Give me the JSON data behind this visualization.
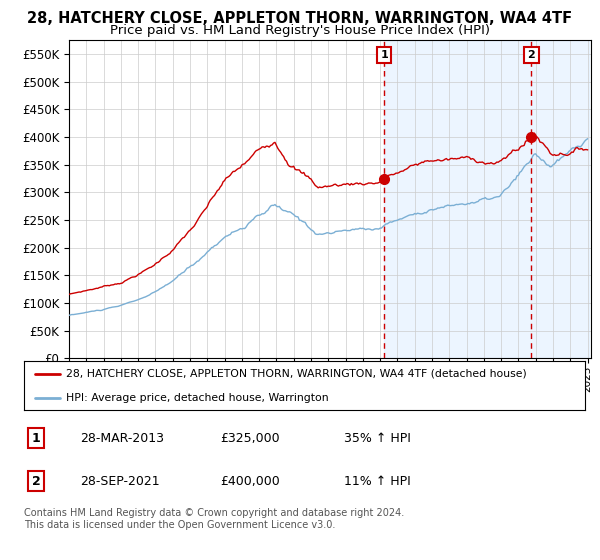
{
  "title": "28, HATCHERY CLOSE, APPLETON THORN, WARRINGTON, WA4 4TF",
  "subtitle": "Price paid vs. HM Land Registry's House Price Index (HPI)",
  "hpi_label": "HPI: Average price, detached house, Warrington",
  "property_label": "28, HATCHERY CLOSE, APPLETON THORN, WARRINGTON, WA4 4TF (detached house)",
  "sale1_date": "28-MAR-2013",
  "sale1_price": 325000,
  "sale1_pct": "35%",
  "sale2_date": "28-SEP-2021",
  "sale2_price": 400000,
  "sale2_pct": "11%",
  "sale1_year": 2013.24,
  "sale2_year": 2021.75,
  "ylim": [
    0,
    575000
  ],
  "yticks": [
    0,
    50000,
    100000,
    150000,
    200000,
    250000,
    300000,
    350000,
    400000,
    450000,
    500000,
    550000
  ],
  "start_year": 1995,
  "end_year": 2025,
  "hpi_color": "#7bafd4",
  "property_color": "#cc0000",
  "bg_shaded_color": "#ddeeff",
  "dashed_color": "#cc0000",
  "footnote": "Contains HM Land Registry data © Crown copyright and database right 2024.\nThis data is licensed under the Open Government Licence v3.0.",
  "title_fontsize": 10.5,
  "subtitle_fontsize": 9.5,
  "axis_fontsize": 8.5
}
